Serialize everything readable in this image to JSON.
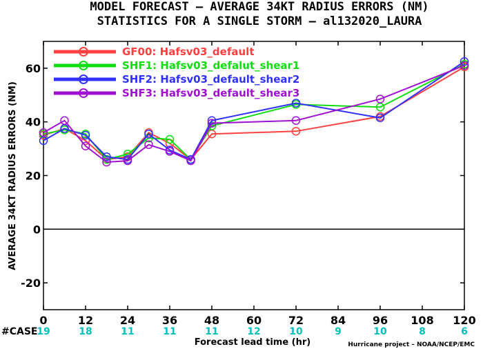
{
  "chart_data": {
    "type": "line",
    "title_line1": "MODEL FORECAST – AVERAGE 34KT RADIUS ERRORS (NM)",
    "title_line2": "STATISTICS FOR A SINGLE STORM – al132020_LAURA",
    "ylabel": "AVERAGE 34KT RADIUS ERRORS (NM)",
    "xlabel": "Forecast lead time (hr)",
    "credit": "Hurricane project – NOAA/NCEP/EMC",
    "xlim": [
      0,
      120
    ],
    "ylim": [
      -30,
      70
    ],
    "x_ticks": [
      0,
      12,
      24,
      36,
      48,
      60,
      72,
      84,
      96,
      108,
      120
    ],
    "y_ticks": [
      -20,
      0,
      20,
      40,
      60
    ],
    "zero_line": true,
    "grid": false,
    "legend_position": "top-left",
    "case_label": "#CASE",
    "case_color": "#00c0c0",
    "case_counts": [
      "19",
      "18",
      "11",
      "11",
      "11",
      "12",
      "10",
      "9",
      "10",
      "8",
      "6"
    ],
    "series": [
      {
        "name": "GF00: Hafsv03_default",
        "color": "#ff4040",
        "x": [
          0,
          6,
          12,
          18,
          24,
          30,
          36,
          42,
          48,
          72,
          96,
          120
        ],
        "y": [
          35,
          37.5,
          33,
          26,
          27,
          36,
          32,
          26,
          35.5,
          36.5,
          42,
          60.5
        ]
      },
      {
        "name": "SHF1: Hafsv03_defalut_shear1",
        "color": "#10dd10",
        "x": [
          0,
          6,
          12,
          18,
          24,
          30,
          36,
          42,
          48,
          72,
          96,
          120
        ],
        "y": [
          35.5,
          37,
          35.5,
          26,
          28,
          34,
          33.5,
          26,
          38.5,
          46.5,
          45.5,
          61.5
        ]
      },
      {
        "name": "SHF2: Hafsv03_default_shear2",
        "color": "#3030ff",
        "x": [
          0,
          6,
          12,
          18,
          24,
          30,
          36,
          42,
          48,
          72,
          96,
          120
        ],
        "y": [
          33,
          37.5,
          35,
          27,
          26,
          35.5,
          29.5,
          26,
          40.5,
          47,
          41.5,
          62.5
        ]
      },
      {
        "name": "SHF3: Hafsv03_default_shear3",
        "color": "#a010d0",
        "x": [
          0,
          6,
          12,
          18,
          24,
          30,
          36,
          42,
          48,
          72,
          96,
          120
        ],
        "y": [
          36,
          40.5,
          31,
          25,
          25.5,
          31.5,
          29,
          25.5,
          39.5,
          40.5,
          48.5,
          61
        ]
      }
    ]
  }
}
